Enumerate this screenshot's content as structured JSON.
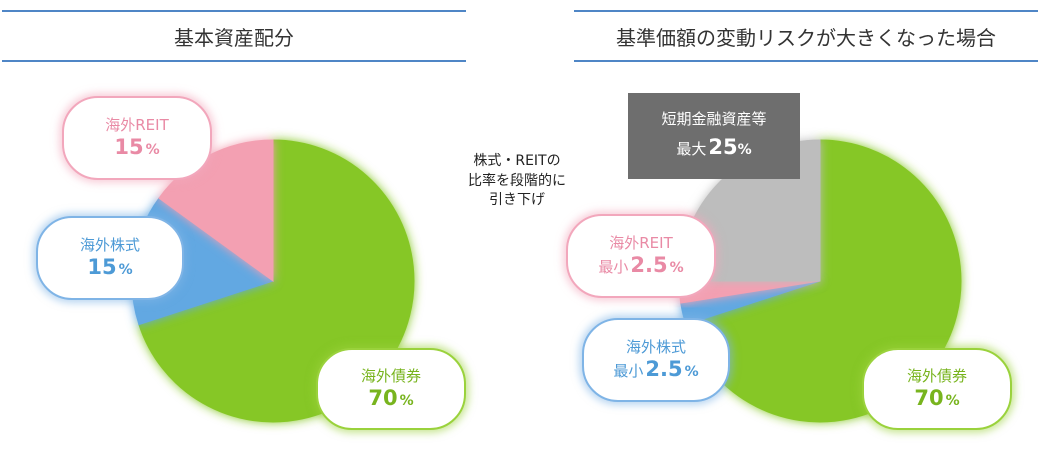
{
  "titles": {
    "left": "基本資産配分",
    "right": "基準価額の変動リスクが大きくなった場合"
  },
  "note": [
    "株式・REITの",
    "比率を段階的に",
    "引き下げ"
  ],
  "left_labels": {
    "reit": {
      "name": "海外REIT",
      "value": "15",
      "unit": "%"
    },
    "stock": {
      "name": "海外株式",
      "value": "15",
      "unit": "%"
    },
    "bond": {
      "name": "海外債券",
      "value": "70",
      "unit": "%"
    }
  },
  "right_labels": {
    "short": {
      "name": "短期金融資産等",
      "prefix": "最大",
      "value": "25",
      "unit": "%"
    },
    "reit": {
      "name": "海外REIT",
      "prefix": "最小",
      "value": "2.5",
      "unit": "%"
    },
    "stock": {
      "name": "海外株式",
      "prefix": "最小",
      "value": "2.5",
      "unit": "%"
    },
    "bond": {
      "name": "海外債券",
      "value": "70",
      "unit": "%"
    }
  },
  "colors": {
    "bond": "#86c727",
    "stock": "#62a8e2",
    "reit": "#f3a0b2",
    "short": "#bdbdbd",
    "accent_line": "#4f86c6"
  },
  "chart_data": [
    {
      "type": "pie",
      "title": "基本資産配分",
      "categories": [
        "海外債券",
        "海外株式",
        "海外REIT"
      ],
      "values": [
        70,
        15,
        15
      ],
      "start": "12 o'clock",
      "direction": "clockwise"
    },
    {
      "type": "pie",
      "title": "基準価額の変動リスクが大きくなった場合",
      "categories": [
        "海外債券",
        "海外株式",
        "海外REIT",
        "短期金融資産等"
      ],
      "values": [
        70,
        2.5,
        2.5,
        25
      ],
      "start": "12 o'clock",
      "direction": "clockwise"
    }
  ]
}
